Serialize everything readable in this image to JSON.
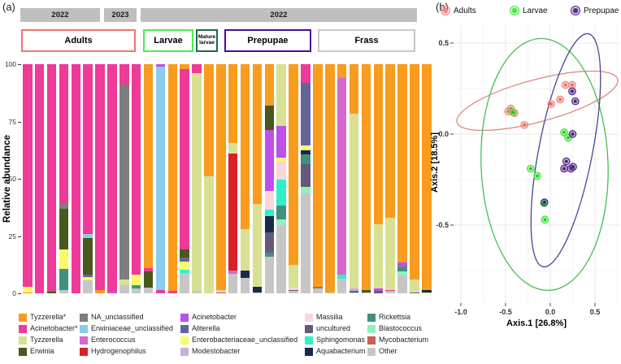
{
  "figure": {
    "panel_a_label": "(a)",
    "panel_b_label": "(b)"
  },
  "taxa_colors": {
    "Tyzzerella*": "#F89C1E",
    "Acinetobacter*": "#EE3A98",
    "Tyzzerella": "#D8E193",
    "Erwinia": "#49591D",
    "NA_unclassified": "#7E7E7E",
    "Erwiniaceae_unclassified": "#8BCBEB",
    "Enterococcus": "#D667CD",
    "Hydrogenophilus": "#D92025",
    "Acinetobacter": "#BE50E9",
    "Aliterella": "#63649C",
    "Enterobacteriaceae_unclassified": "#FAFA68",
    "Modestobacter": "#C9AFDD",
    "Massilia": "#FAD5DB",
    "uncultured": "#64597B",
    "Sphingomonas": "#31EFC8",
    "Aquabacterium": "#162B4E",
    "Rickettsia": "#41907F",
    "Blastococcus": "#92F0B9",
    "Mycobacterium": "#CB6054",
    "Other": "#C6C6C6"
  },
  "panel_a": {
    "ylabel": "Relative abundance",
    "yticks": [
      100,
      75,
      50,
      25,
      0
    ],
    "year_bands": [
      "2022",
      "2023",
      "2022"
    ],
    "groups": [
      "Adults",
      "Larvae",
      "Mature larvae",
      "Prepupae",
      "Frass"
    ],
    "group_border_colors": [
      "#F0766B",
      "#4BF04B",
      "#20684A",
      "#4A0D9C",
      "#C8C8C8"
    ],
    "legend_columns": [
      [
        "Tyzzerella*",
        "Acinetobacter*",
        "Tyzzerella",
        "Erwinia"
      ],
      [
        "NA_unclassified",
        "Erwiniaceae_unclassified",
        "Enterococcus",
        "Hydrogenophilus"
      ],
      [
        "Acinetobacter",
        "Aliterella",
        "Enterobacteriaceae_unclassified",
        "Modestobacter"
      ],
      [
        "Massilia",
        "uncultured",
        "Sphingomonas",
        "Aquabacterium"
      ],
      [
        "Rickettsia",
        "Blastococcus",
        "Mycobacterium",
        "Other"
      ]
    ]
  },
  "panel_b": {
    "xlabel": "Axis.1 [26.8%]",
    "ylabel": "Axis.2 [18.5%]",
    "xticks": [
      "-1.0",
      "-0.5",
      "0.0",
      "0.5"
    ],
    "yticks": [
      "0.5",
      "0.0",
      "-0.5"
    ]
  },
  "chart_data": [
    {
      "type": "bar",
      "stacked": true,
      "panel": "a",
      "ylabel": "Relative abundance",
      "ylim": [
        0,
        100
      ],
      "year_assignments": [
        [
          "2022",
          1,
          7
        ],
        [
          "2023",
          8,
          10
        ],
        [
          "2022",
          11,
          34
        ]
      ],
      "group_assignments": [
        [
          "Adults",
          1,
          10
        ],
        [
          "Larvae",
          11,
          15
        ],
        [
          "Mature larvae",
          16,
          17
        ],
        [
          "Prepupae",
          18,
          24
        ],
        [
          "Frass",
          25,
          34
        ]
      ],
      "bars": [
        {
          "segments": [
            [
              "Acinetobacter*",
              97
            ],
            [
              "Enterobacteriaceae_unclassified",
              2.5
            ],
            [
              "Tyzzerella*",
              0.5
            ]
          ]
        },
        {
          "segments": [
            [
              "Acinetobacter*",
              100
            ]
          ]
        },
        {
          "segments": [
            [
              "Acinetobacter*",
              99.2
            ],
            [
              "Erwinia",
              0.8
            ]
          ]
        },
        {
          "segments": [
            [
              "Acinetobacter*",
              61
            ],
            [
              "NA_unclassified",
              2
            ],
            [
              "Erwinia",
              18
            ],
            [
              "Enterobacteriaceae_unclassified",
              8.5
            ],
            [
              "Rickettsia",
              9
            ],
            [
              "Other",
              1.5
            ]
          ]
        },
        {
          "segments": [
            [
              "Acinetobacter*",
              100
            ]
          ]
        },
        {
          "segments": [
            [
              "Acinetobacter*",
              74
            ],
            [
              "Erwiniaceae_unclassified",
              2
            ],
            [
              "Erwinia",
              16
            ],
            [
              "Aliterella",
              1
            ],
            [
              "Enterobacteriaceae_unclassified",
              1.5
            ],
            [
              "Other",
              5.5
            ]
          ]
        },
        {
          "segments": [
            [
              "Acinetobacter*",
              98.5
            ],
            [
              "Tyzzerella*",
              1.5
            ]
          ]
        },
        {
          "segments": [
            [
              "Acinetobacter*",
              99
            ],
            [
              "Acinetobacter",
              1
            ]
          ]
        },
        {
          "segments": [
            [
              "Acinetobacter*",
              9
            ],
            [
              "NA_unclassified",
              85
            ],
            [
              "Tyzzerella",
              2.5
            ],
            [
              "Other",
              3.5
            ]
          ]
        },
        {
          "segments": [
            [
              "Acinetobacter*",
              92
            ],
            [
              "Enterobacteriaceae_unclassified",
              4.5
            ],
            [
              "Rickettsia",
              1.5
            ],
            [
              "Other",
              2
            ]
          ]
        },
        {
          "segments": [
            [
              "Tyzzerella*",
              89
            ],
            [
              "Acinetobacter*",
              1.5
            ],
            [
              "Erwinia",
              7
            ],
            [
              "Other",
              2.5
            ]
          ]
        },
        {
          "segments": [
            [
              "Acinetobacter",
              1
            ],
            [
              "Erwiniaceae_unclassified",
              97.5
            ],
            [
              "Acinetobacter*",
              1.5
            ]
          ]
        },
        {
          "segments": [
            [
              "Tyzzerella*",
              99
            ],
            [
              "Acinetobacter*",
              1
            ]
          ]
        },
        {
          "segments": [
            [
              "Tyzzerella*",
              2
            ],
            [
              "Acinetobacter*",
              79
            ],
            [
              "Erwinia",
              3.5
            ],
            [
              "Aliterella",
              1.8
            ],
            [
              "Enterobacteriaceae_unclassified",
              3.5
            ],
            [
              "Sphingomonas",
              1.2
            ],
            [
              "Other",
              9
            ]
          ]
        },
        {
          "segments": [
            [
              "Acinetobacter*",
              4
            ],
            [
              "Tyzzerella",
              95
            ],
            [
              "Other",
              1
            ]
          ]
        },
        {
          "segments": [
            [
              "Tyzzerella*",
              49
            ],
            [
              "Tyzzerella",
              51
            ]
          ]
        },
        {
          "segments": [
            [
              "Tyzzerella*",
              98.5
            ],
            [
              "Tyzzerella",
              1
            ],
            [
              "Acinetobacter*",
              0.5
            ]
          ]
        },
        {
          "segments": [
            [
              "Tyzzerella*",
              34.5
            ],
            [
              "Tyzzerella",
              4.5
            ],
            [
              "Hydrogenophilus",
              51
            ],
            [
              "Enterococcus",
              1.5
            ],
            [
              "Other",
              8.5
            ]
          ]
        },
        {
          "segments": [
            [
              "Tyzzerella*",
              72
            ],
            [
              "Tyzzerella",
              18
            ],
            [
              "Aquabacterium",
              3.2
            ],
            [
              "Other",
              6.8
            ]
          ]
        },
        {
          "segments": [
            [
              "Tyzzerella*",
              61
            ],
            [
              "Tyzzerella",
              36
            ],
            [
              "Aquabacterium",
              2.5
            ],
            [
              "Other",
              0.5
            ]
          ]
        },
        {
          "segments": [
            [
              "Tyzzerella*",
              18
            ],
            [
              "Erwinia",
              10.7
            ],
            [
              "Acinetobacter",
              26.5
            ],
            [
              "Massilia",
              8.2
            ],
            [
              "Sphingomonas",
              2.9
            ],
            [
              "Aquabacterium",
              7.2
            ],
            [
              "uncultured",
              8.9
            ],
            [
              "Rickettsia",
              1.8
            ],
            [
              "Other",
              15.8
            ]
          ]
        },
        {
          "segments": [
            [
              "Tyzzerella",
              27
            ],
            [
              "Acinetobacter",
              13.8
            ],
            [
              "Enterobacteriaceae_unclassified",
              1.8
            ],
            [
              "Massilia",
              7.6
            ],
            [
              "Sphingomonas",
              11.4
            ],
            [
              "Rickettsia",
              6.1
            ],
            [
              "Blastococcus",
              2.9
            ],
            [
              "Other",
              29.4
            ]
          ]
        },
        {
          "segments": [
            [
              "Tyzzerella*",
              87.5
            ],
            [
              "Tyzzerella",
              10
            ],
            [
              "Massilia",
              1
            ],
            [
              "uncultured",
              0.5
            ],
            [
              "Other",
              1
            ]
          ]
        },
        {
          "segments": [
            [
              "Acinetobacter*",
              8
            ],
            [
              "Aliterella",
              27.5
            ],
            [
              "Enterobacteriaceae_unclassified",
              2
            ],
            [
              "Aquabacterium",
              2
            ],
            [
              "Rickettsia",
              4
            ],
            [
              "uncultured",
              10
            ],
            [
              "Blastococcus",
              3
            ],
            [
              "Other",
              43.5
            ]
          ]
        },
        {
          "segments": [
            [
              "Tyzzerella*",
              97
            ],
            [
              "NA_unclassified",
              1
            ],
            [
              "Other",
              2
            ]
          ]
        },
        {
          "segments": [
            [
              "Tyzzerella*",
              99.5
            ],
            [
              "Other",
              0.5
            ]
          ]
        },
        {
          "segments": [
            [
              "Tyzzerella*",
              6
            ],
            [
              "Enterococcus",
              86
            ],
            [
              "Sphingomonas",
              1.5
            ],
            [
              "Other",
              6.5
            ]
          ]
        },
        {
          "segments": [
            [
              "Tyzzerella*",
              21.5
            ],
            [
              "Tyzzerella",
              76.5
            ],
            [
              "Modestobacter",
              1
            ],
            [
              "uncultured",
              0.5
            ],
            [
              "Other",
              0.5
            ]
          ]
        },
        {
          "segments": [
            [
              "Tyzzerella*",
              98.5
            ],
            [
              "Erwinia",
              1
            ],
            [
              "Other",
              0.5
            ]
          ]
        },
        {
          "segments": [
            [
              "Tyzzerella*",
              70
            ],
            [
              "Tyzzerella",
              28
            ],
            [
              "Acinetobacter",
              1
            ],
            [
              "uncultured",
              1
            ]
          ]
        },
        {
          "segments": [
            [
              "Tyzzerella*",
              67
            ],
            [
              "Tyzzerella",
              31.5
            ],
            [
              "Acinetobacter*",
              0.5
            ],
            [
              "Other",
              1
            ]
          ]
        },
        {
          "segments": [
            [
              "Tyzzerella*",
              86.5
            ],
            [
              "Acinetobacter",
              1.8
            ],
            [
              "Rickettsia",
              2.2
            ],
            [
              "Blastococcus",
              1.8
            ],
            [
              "Other",
              7.7
            ]
          ]
        },
        {
          "segments": [
            [
              "Tyzzerella*",
              94
            ],
            [
              "Tyzzerella",
              5.5
            ],
            [
              "Aliterella",
              0.5
            ]
          ]
        },
        {
          "segments": [
            [
              "Tyzzerella*",
              98.5
            ],
            [
              "Aquabacterium",
              1
            ],
            [
              "Tyzzerella",
              0.5
            ]
          ]
        }
      ]
    },
    {
      "type": "scatter",
      "panel": "b",
      "xlabel": "Axis.1 [26.8%]",
      "ylabel": "Axis.2 [18.5%]",
      "xticks": [
        -1.0,
        -0.5,
        0.0,
        0.5
      ],
      "yticks": [
        0.5,
        0.0,
        -0.5
      ],
      "xlim": [
        -1.08,
        0.77
      ],
      "ylim": [
        -0.93,
        0.6
      ],
      "grid": true,
      "legend_position": "top",
      "series": [
        {
          "name": "Adults",
          "color": "#F08A80",
          "dot": "#E4685C",
          "points": [
            [
              -0.47,
              0.125
            ],
            [
              -0.44,
              0.14
            ],
            [
              -0.4,
              0.115
            ],
            [
              -0.29,
              0.05
            ],
            [
              0.01,
              0.165
            ],
            [
              0.11,
              0.19
            ],
            [
              0.17,
              0.27
            ],
            [
              0.245,
              0.27
            ]
          ]
        },
        {
          "name": "Larvae",
          "color": "#43E843",
          "dot": "#1FC71F",
          "points": [
            [
              -0.42,
              0.12
            ],
            [
              0.155,
              0.01
            ],
            [
              0.2,
              -0.02
            ],
            [
              -0.22,
              -0.19
            ],
            [
              -0.145,
              -0.23
            ],
            [
              -0.07,
              -0.38
            ],
            [
              -0.06,
              -0.47
            ]
          ]
        },
        {
          "name": "Prepupae",
          "color": "#5A2D90",
          "dot": "#38206E",
          "points": [
            [
              0.245,
              0.235
            ],
            [
              0.28,
              0.18
            ],
            [
              0.25,
              0.0
            ],
            [
              0.18,
              -0.15
            ],
            [
              0.155,
              -0.19
            ],
            [
              0.23,
              -0.19
            ],
            [
              0.255,
              -0.18
            ],
            [
              -0.065,
              -0.375
            ]
          ]
        }
      ],
      "ellipses": [
        {
          "series": "Adults",
          "stroke": "#DD8B83",
          "cx": -0.145,
          "cy": 0.183,
          "rx": 0.93,
          "ry": 0.116,
          "angle": -15
        },
        {
          "series": "Larvae",
          "stroke": "#44C054",
          "cx": -0.064,
          "cy": -0.167,
          "rx": 0.71,
          "ry": 0.692,
          "angle": -2
        },
        {
          "series": "Prepupae",
          "stroke": "#4B4392",
          "cx": 0.173,
          "cy": -0.089,
          "rx": 0.3,
          "ry": 0.652,
          "angle": 11
        }
      ]
    }
  ]
}
